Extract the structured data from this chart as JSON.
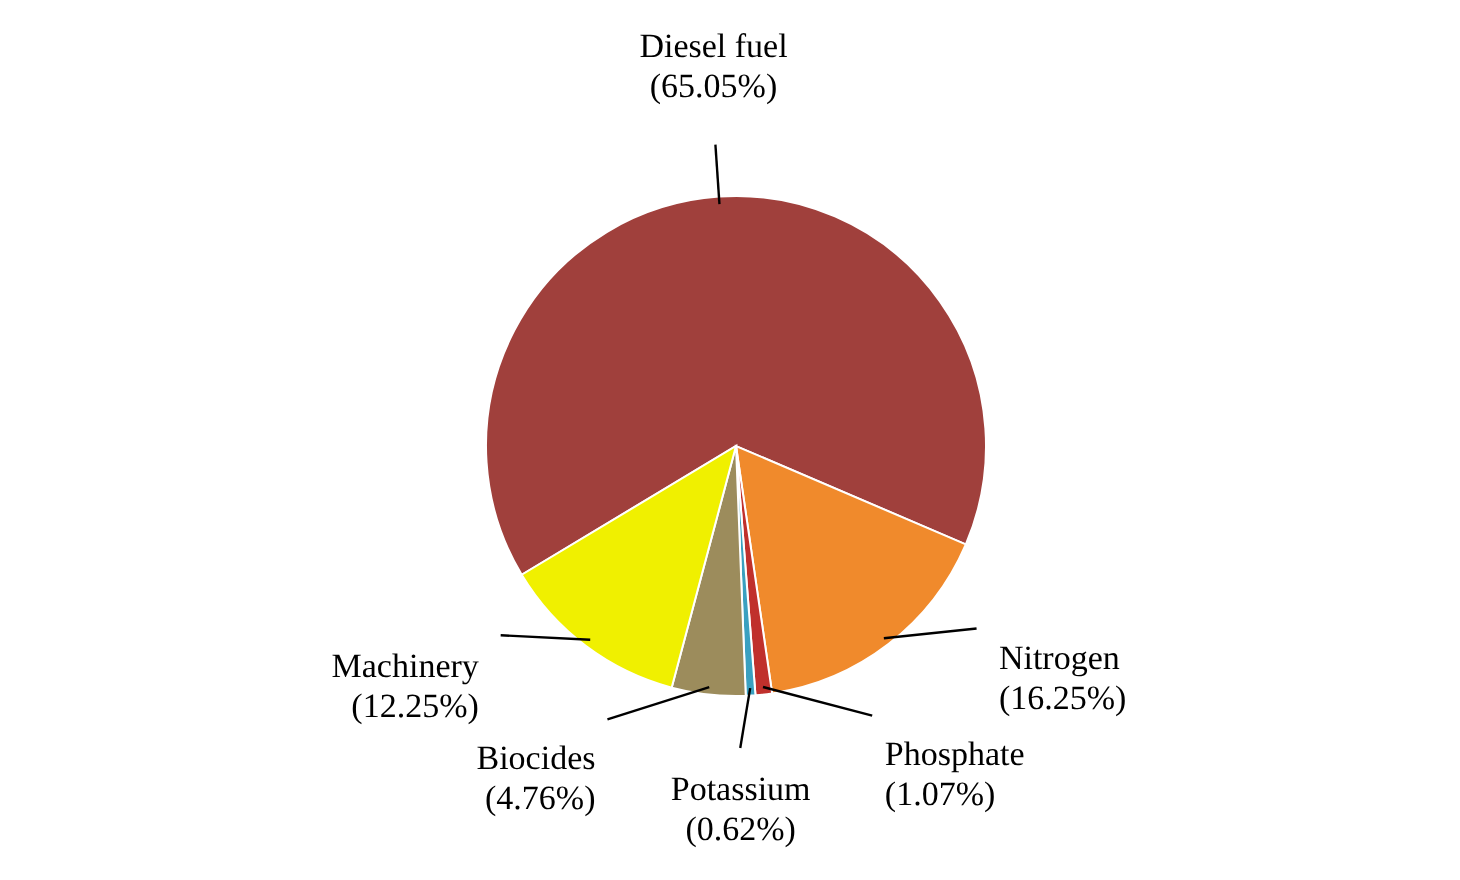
{
  "chart_data": {
    "type": "pie",
    "categories": [
      "Diesel fuel",
      "Nitrogen",
      "Phosphate",
      "Potassium",
      "Biocides",
      "Machinery"
    ],
    "values": [
      65.05,
      16.25,
      1.07,
      0.62,
      4.76,
      12.25
    ],
    "value_labels": [
      "(65.05%)",
      "(16.25%)",
      "(1.07%)",
      "(0.62%)",
      "(4.76%)",
      "(12.25%)"
    ],
    "colors": [
      "#a0403c",
      "#f08a2c",
      "#c0302c",
      "#3aa0c0",
      "#9c8c5c",
      "#f0f000"
    ]
  }
}
